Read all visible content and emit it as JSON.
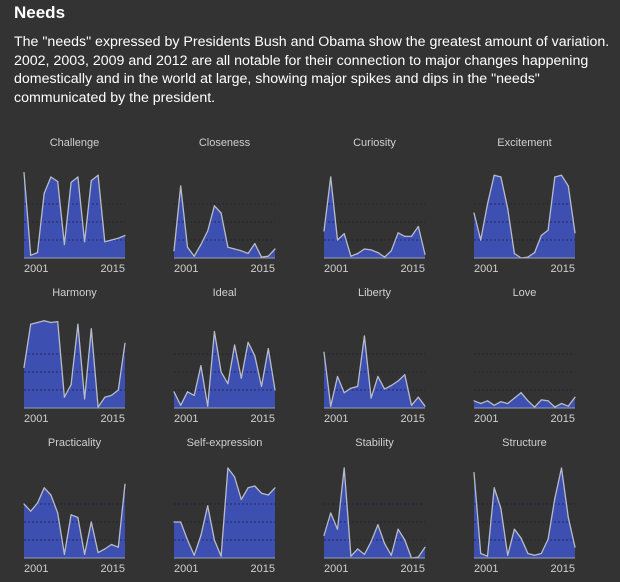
{
  "header": {
    "title": "Needs",
    "description": "The \"needs\" expressed by Presidents Bush and Obama show the greatest amount of variation. 2002, 2003, 2009 and 2012 are all notable for their connection to major changes happening domestically and in the world at large, showing major spikes and dips in the \"needs\" communicated by the president."
  },
  "colors": {
    "background": "#333333",
    "fill": "#3d4fb0",
    "line": "#b8bcc8",
    "text": "#ffffff",
    "label": "#d0d0d0"
  },
  "chart_data": [
    {
      "type": "area",
      "title": "Challenge",
      "x": [
        2001,
        2002,
        2003,
        2004,
        2005,
        2006,
        2007,
        2008,
        2009,
        2010,
        2011,
        2012,
        2013,
        2014,
        2015,
        2016
      ],
      "values": [
        0.95,
        0.03,
        0.06,
        0.72,
        0.9,
        0.85,
        0.15,
        0.84,
        0.9,
        0.18,
        0.86,
        0.92,
        0.18,
        0.2,
        0.22,
        0.25
      ],
      "xticks": [
        "2001",
        "2015"
      ]
    },
    {
      "type": "area",
      "title": "Closeness",
      "x": [
        2001,
        2002,
        2003,
        2004,
        2005,
        2006,
        2007,
        2008,
        2009,
        2010,
        2011,
        2012,
        2013,
        2014,
        2015,
        2016
      ],
      "values": [
        0.08,
        0.8,
        0.12,
        0.02,
        0.15,
        0.3,
        0.58,
        0.5,
        0.12,
        0.1,
        0.08,
        0.05,
        0.16,
        0.01,
        0.02,
        0.1
      ],
      "xticks": [
        "2001",
        "2015"
      ]
    },
    {
      "type": "area",
      "title": "Curiosity",
      "x": [
        2001,
        2002,
        2003,
        2004,
        2005,
        2006,
        2007,
        2008,
        2009,
        2010,
        2011,
        2012,
        2013,
        2014,
        2015,
        2016
      ],
      "values": [
        0.3,
        0.9,
        0.2,
        0.27,
        0.02,
        0.05,
        0.1,
        0.09,
        0.06,
        0.01,
        0.08,
        0.28,
        0.24,
        0.24,
        0.35,
        0.04
      ],
      "xticks": [
        "2001",
        "2015"
      ]
    },
    {
      "type": "area",
      "title": "Excitement",
      "x": [
        2001,
        2002,
        2003,
        2004,
        2005,
        2006,
        2007,
        2008,
        2009,
        2010,
        2011,
        2012,
        2013,
        2014,
        2015,
        2016
      ],
      "values": [
        0.5,
        0.2,
        0.6,
        0.92,
        0.9,
        0.55,
        0.05,
        0.0,
        0.01,
        0.06,
        0.25,
        0.31,
        0.9,
        0.92,
        0.8,
        0.28
      ],
      "xticks": [
        "2001",
        "2015"
      ]
    },
    {
      "type": "area",
      "title": "Harmony",
      "x": [
        2001,
        2002,
        2003,
        2004,
        2005,
        2006,
        2007,
        2008,
        2009,
        2010,
        2011,
        2012,
        2013,
        2014,
        2015,
        2016
      ],
      "values": [
        0.45,
        0.93,
        0.95,
        0.97,
        0.95,
        0.96,
        0.12,
        0.26,
        0.93,
        0.1,
        0.88,
        0.01,
        0.12,
        0.14,
        0.2,
        0.72
      ],
      "xticks": [
        "2001",
        "2015"
      ]
    },
    {
      "type": "area",
      "title": "Ideal",
      "x": [
        2001,
        2002,
        2003,
        2004,
        2005,
        2006,
        2007,
        2008,
        2009,
        2010,
        2011,
        2012,
        2013,
        2014,
        2015,
        2016
      ],
      "values": [
        0.18,
        0.03,
        0.18,
        0.14,
        0.47,
        0.02,
        0.85,
        0.4,
        0.27,
        0.7,
        0.33,
        0.73,
        0.58,
        0.24,
        0.66,
        0.2
      ],
      "xticks": [
        "2001",
        "2015"
      ]
    },
    {
      "type": "area",
      "title": "Liberty",
      "x": [
        2001,
        2002,
        2003,
        2004,
        2005,
        2006,
        2007,
        2008,
        2009,
        2010,
        2011,
        2012,
        2013,
        2014,
        2015,
        2016
      ],
      "values": [
        0.62,
        0.02,
        0.35,
        0.17,
        0.22,
        0.24,
        0.8,
        0.11,
        0.35,
        0.21,
        0.25,
        0.3,
        0.37,
        0.03,
        0.12,
        0.02
      ],
      "xticks": [
        "2001",
        "2015"
      ]
    },
    {
      "type": "area",
      "title": "Love",
      "x": [
        2001,
        2002,
        2003,
        2004,
        2005,
        2006,
        2007,
        2008,
        2009,
        2010,
        2011,
        2012,
        2013,
        2014,
        2015,
        2016
      ],
      "values": [
        0.08,
        0.05,
        0.08,
        0.03,
        0.07,
        0.05,
        0.11,
        0.17,
        0.08,
        0.01,
        0.09,
        0.08,
        0.01,
        0.05,
        0.02,
        0.12
      ],
      "xticks": [
        "2001",
        "2015"
      ]
    },
    {
      "type": "area",
      "title": "Practicality",
      "x": [
        2001,
        2002,
        2003,
        2004,
        2005,
        2006,
        2007,
        2008,
        2009,
        2010,
        2011,
        2012,
        2013,
        2014,
        2015,
        2016
      ],
      "values": [
        0.6,
        0.52,
        0.61,
        0.78,
        0.7,
        0.5,
        0.04,
        0.48,
        0.45,
        0.04,
        0.4,
        0.06,
        0.1,
        0.15,
        0.12,
        0.82
      ],
      "xticks": [
        "2001",
        "2015"
      ]
    },
    {
      "type": "area",
      "title": "Self-expression",
      "x": [
        2001,
        2002,
        2003,
        2004,
        2005,
        2006,
        2007,
        2008,
        2009,
        2010,
        2011,
        2012,
        2013,
        2014,
        2015,
        2016
      ],
      "values": [
        0.4,
        0.4,
        0.2,
        0.03,
        0.25,
        0.58,
        0.2,
        0.02,
        1.0,
        0.9,
        0.65,
        0.78,
        0.8,
        0.72,
        0.7,
        0.78
      ],
      "xticks": [
        "2001",
        "2015"
      ]
    },
    {
      "type": "area",
      "title": "Stability",
      "x": [
        2001,
        2002,
        2003,
        2004,
        2005,
        2006,
        2007,
        2008,
        2009,
        2010,
        2011,
        2012,
        2013,
        2014,
        2015,
        2016
      ],
      "values": [
        0.25,
        0.5,
        0.32,
        1.0,
        0.02,
        0.1,
        0.04,
        0.18,
        0.37,
        0.16,
        0.03,
        0.32,
        0.2,
        0.0,
        0.01,
        0.12
      ],
      "xticks": [
        "2001",
        "2015"
      ]
    },
    {
      "type": "area",
      "title": "Structure",
      "x": [
        2001,
        2002,
        2003,
        2004,
        2005,
        2006,
        2007,
        2008,
        2009,
        2010,
        2011,
        2012,
        2013,
        2014,
        2015,
        2016
      ],
      "values": [
        0.95,
        0.05,
        0.02,
        0.78,
        0.55,
        0.03,
        0.32,
        0.22,
        0.05,
        0.03,
        0.05,
        0.21,
        0.66,
        1.0,
        0.45,
        0.12
      ],
      "xticks": [
        "2001",
        "2015"
      ]
    }
  ]
}
